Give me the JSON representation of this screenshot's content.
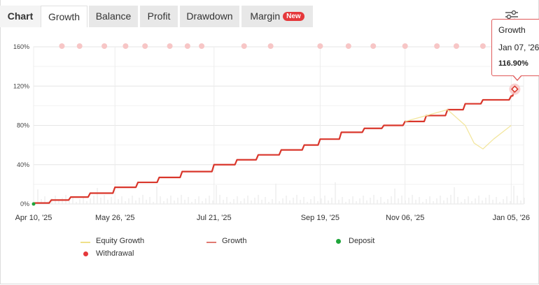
{
  "tabs": [
    {
      "label": "Chart"
    },
    {
      "label": "Growth"
    },
    {
      "label": "Balance"
    },
    {
      "label": "Profit"
    },
    {
      "label": "Drawdown"
    },
    {
      "label": "Margin"
    }
  ],
  "margin_badge": "New",
  "active_tab": "Growth",
  "icons": {
    "settings": "sliders-icon"
  },
  "colors": {
    "growth": "#d9362b",
    "equity": "#f3e7a0",
    "deposit": "#1fa53b",
    "withdrawal": "#e5383b",
    "withdrawal_marker": "#f7c6c6"
  },
  "tooltip": {
    "series": "Growth",
    "date": "Jan 07, '26",
    "value": "116.90%"
  },
  "legend": [
    {
      "label": "Equity Growth"
    },
    {
      "label": "Growth"
    },
    {
      "label": "Deposit"
    },
    {
      "label": "Withdrawal"
    }
  ],
  "chart_data": {
    "type": "line",
    "xlabel": "",
    "ylabel": "",
    "ylim": [
      0,
      160
    ],
    "y_ticks": [
      "160%",
      "120%",
      "80%",
      "40%",
      "0%"
    ],
    "x_ticks": [
      "Apr 10, '25",
      "May 26, '25",
      "Jul 21, '25",
      "Sep 19, '25",
      "Nov 06, '25",
      "Jan 05, '26"
    ],
    "grid": true,
    "legend_position": "bottom",
    "series": [
      {
        "name": "Growth",
        "x": [
          "Apr 10, '25",
          "Apr 20, '25",
          "May 01, '25",
          "May 12, '25",
          "May 26, '25",
          "Jun 08, '25",
          "Jun 20, '25",
          "Jul 03, '25",
          "Jul 21, '25",
          "Aug 03, '25",
          "Aug 15, '25",
          "Aug 28, '25",
          "Sep 10, '25",
          "Sep 19, '25",
          "Oct 01, '25",
          "Oct 14, '25",
          "Oct 25, '25",
          "Nov 06, '25",
          "Nov 18, '25",
          "Nov 30, '25",
          "Dec 10, '25",
          "Dec 20, '25",
          "Jan 05, '26",
          "Jan 07, '26"
        ],
        "values": [
          1,
          4,
          7,
          11,
          17,
          22,
          27,
          33,
          40,
          45,
          50,
          55,
          60,
          66,
          73,
          77,
          80,
          84,
          90,
          96,
          102,
          106,
          110,
          116.9
        ]
      },
      {
        "name": "Equity Growth",
        "x": [
          "Nov 06, '25",
          "Nov 18, '25",
          "Nov 30, '25",
          "Dec 05, '25",
          "Dec 10, '25",
          "Dec 15, '25",
          "Dec 20, '25",
          "Dec 26, '25",
          "Jan 05, '26"
        ],
        "values": [
          84,
          90,
          96,
          88,
          80,
          62,
          56,
          66,
          80
        ]
      }
    ],
    "withdrawal_markers": [
      "Apr 26, '25",
      "May 06, '25",
      "May 20, '25",
      "Jun 01, '25",
      "Jun 12, '25",
      "Jun 26, '25",
      "Jul 06, '25",
      "Jul 14, '25",
      "Aug 07, '25",
      "Aug 22, '25",
      "Sep 19, '25",
      "Oct 05, '25",
      "Oct 19, '25",
      "Nov 06, '25",
      "Nov 24, '25",
      "Dec 05, '25",
      "Dec 20, '25",
      "Jan 05, '26"
    ]
  }
}
